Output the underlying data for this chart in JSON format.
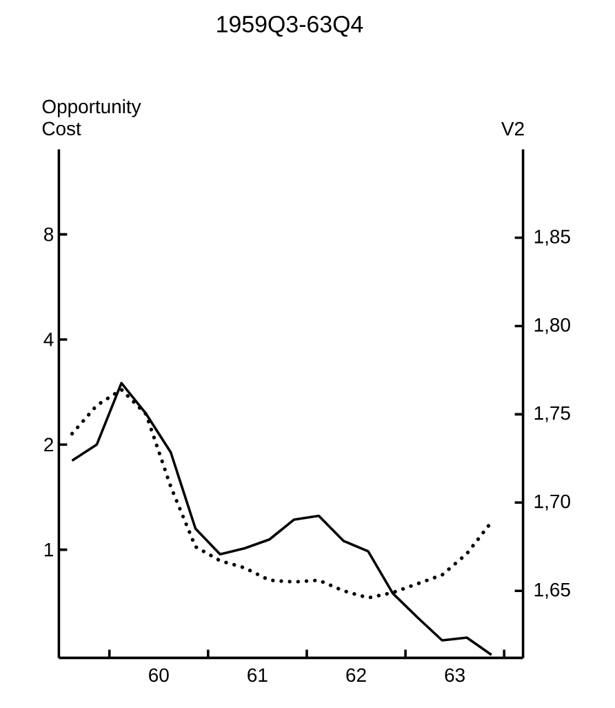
{
  "chart_data": {
    "type": "line",
    "title": "1959Q3-63Q4",
    "ylabel": "Opportunity Cost",
    "y2label": "V2",
    "x": [
      "1959-08-15",
      "1959-11-15",
      "1960-02-15",
      "1960-05-15",
      "1960-08-15",
      "1960-11-15",
      "1961-02-15",
      "1961-05-15",
      "1961-08-15",
      "1961-11-15",
      "1962-02-15",
      "1962-05-15",
      "1962-08-15",
      "1962-11-15",
      "1963-02-15",
      "1963-05-15",
      "1963-08-15",
      "1963-11-15"
    ],
    "series": [
      {
        "color": "#000000",
        "line_style": "solid",
        "values": [
          1.8,
          2.0,
          3.0,
          2.45,
          1.9,
          1.15,
          0.97,
          1.01,
          1.07,
          1.22,
          1.25,
          1.06,
          0.99,
          0.75,
          0.64,
          0.55,
          0.56,
          0.5
        ]
      },
      {
        "color": "#000000",
        "line_style": "dotted",
        "axis": "y2",
        "values": [
          1.739,
          1.755,
          1.764,
          1.75,
          1.709,
          1.675,
          1.667,
          1.663,
          1.656,
          1.655,
          1.656,
          1.65,
          1.646,
          1.649,
          1.654,
          1.659,
          1.671,
          1.689
        ]
      }
    ],
    "log": "y",
    "xlim": [
      "1959-06-27",
      "1964-03-10"
    ],
    "xticks": [
      {
        "value": "1960-01-01",
        "label": null
      },
      {
        "value": "1960-07-01",
        "label": "60"
      },
      {
        "value": "1961-01-01",
        "label": null
      },
      {
        "value": "1961-07-01",
        "label": "61"
      },
      {
        "value": "1962-01-01",
        "label": null
      },
      {
        "value": "1962-07-01",
        "label": "62"
      },
      {
        "value": "1963-01-01",
        "label": null
      },
      {
        "value": "1963-07-01",
        "label": "63"
      },
      {
        "value": "1964-01-01",
        "label": null
      }
    ],
    "ylim": [
      0.49,
      14
    ],
    "yticks": [
      1,
      2,
      4,
      8
    ],
    "y2lim": [
      1.612,
      1.9
    ],
    "y2ticks": [
      {
        "value": 1.65,
        "label": "1,65"
      },
      {
        "value": 1.7,
        "label": "1,70"
      },
      {
        "value": 1.75,
        "label": "1,75"
      },
      {
        "value": 1.8,
        "label": "1,80"
      },
      {
        "value": 1.85,
        "label": "1,85"
      }
    ]
  }
}
